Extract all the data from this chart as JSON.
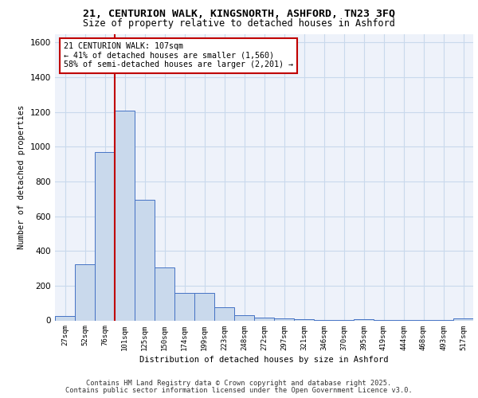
{
  "title_line1": "21, CENTURION WALK, KINGSNORTH, ASHFORD, TN23 3FQ",
  "title_line2": "Size of property relative to detached houses in Ashford",
  "xlabel": "Distribution of detached houses by size in Ashford",
  "ylabel": "Number of detached properties",
  "annotation_line1": "21 CENTURION WALK: 107sqm",
  "annotation_line2": "← 41% of detached houses are smaller (1,560)",
  "annotation_line3": "58% of semi-detached houses are larger (2,201) →",
  "bar_labels": [
    "27sqm",
    "52sqm",
    "76sqm",
    "101sqm",
    "125sqm",
    "150sqm",
    "174sqm",
    "199sqm",
    "223sqm",
    "248sqm",
    "272sqm",
    "297sqm",
    "321sqm",
    "346sqm",
    "370sqm",
    "395sqm",
    "419sqm",
    "444sqm",
    "468sqm",
    "493sqm",
    "517sqm"
  ],
  "bar_values": [
    25,
    325,
    970,
    1210,
    695,
    305,
    160,
    160,
    75,
    30,
    15,
    10,
    5,
    3,
    2,
    5,
    2,
    1,
    1,
    1,
    10
  ],
  "bar_color": "#c9d9ec",
  "bar_edge_color": "#4472c4",
  "vline_color": "#c00000",
  "ylim": [
    0,
    1650
  ],
  "yticks": [
    0,
    200,
    400,
    600,
    800,
    1000,
    1200,
    1400,
    1600
  ],
  "grid_color": "#c9d9ec",
  "bg_color": "#eef2fa",
  "annotation_box_color": "#c00000",
  "footer_line1": "Contains HM Land Registry data © Crown copyright and database right 2025.",
  "footer_line2": "Contains public sector information licensed under the Open Government Licence v3.0."
}
